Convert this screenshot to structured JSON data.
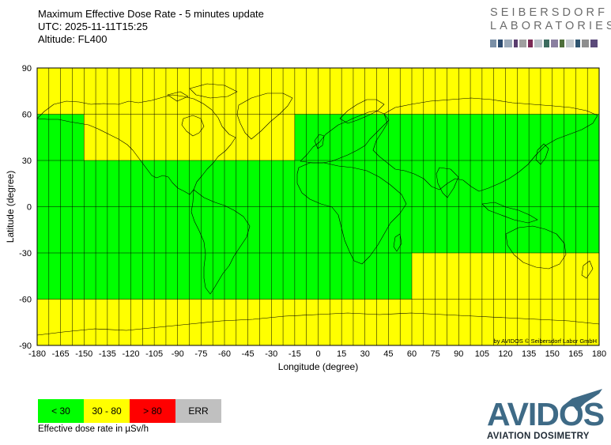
{
  "header": {
    "title": "Maximum Effective Dose Rate - 5 minutes update",
    "utc": "UTC: 2025-11-11T15:25",
    "altitude": "Altitude: FL400"
  },
  "logo_top": {
    "line1": "SEIBERSDORF",
    "line2": "LABORATORIES"
  },
  "colors": {
    "green": "#00ff00",
    "yellow": "#ffff00",
    "red": "#ff0000",
    "gray": "#c0c0c0",
    "grid": "#000000",
    "coast": "#000000"
  },
  "map": {
    "xlabel": "Longitude (degree)",
    "ylabel": "Latitude (degree)",
    "xlim": [
      -180,
      180
    ],
    "ylim": [
      -90,
      90
    ],
    "x_ticks": [
      -180,
      -165,
      -150,
      -135,
      -120,
      -105,
      -90,
      -75,
      -60,
      -45,
      -30,
      -15,
      0,
      15,
      30,
      45,
      60,
      75,
      90,
      105,
      120,
      135,
      150,
      165,
      180
    ],
    "y_ticks": [
      90,
      60,
      30,
      0,
      -30,
      -60,
      -90
    ],
    "lon_grid_step": 7.5,
    "lat_grid_step": 30,
    "credit": "by AVIDOS © Seibersdorf Labor GmbH",
    "dose_regions": [
      {
        "lon": [
          -180,
          180
        ],
        "lat": [
          60,
          90
        ],
        "category": "30 - 80"
      },
      {
        "lon": [
          -180,
          180
        ],
        "lat": [
          -90,
          -60
        ],
        "category": "30 - 80"
      },
      {
        "lon": [
          -150,
          -15
        ],
        "lat": [
          30,
          60
        ],
        "category": "30 - 80"
      },
      {
        "lon": [
          60,
          180
        ],
        "lat": [
          -60,
          -30
        ],
        "category": "30 - 80"
      },
      {
        "lon": [
          -180,
          -150
        ],
        "lat": [
          30,
          60
        ],
        "category": "< 30"
      },
      {
        "lon": [
          -15,
          180
        ],
        "lat": [
          30,
          60
        ],
        "category": "< 30"
      },
      {
        "lon": [
          -180,
          180
        ],
        "lat": [
          -30,
          30
        ],
        "category": "< 30"
      },
      {
        "lon": [
          -180,
          60
        ],
        "lat": [
          -60,
          -30
        ],
        "category": "< 30"
      }
    ]
  },
  "legend": {
    "items": [
      {
        "label": "< 30",
        "color": "#00ff00"
      },
      {
        "label": "30 - 80",
        "color": "#ffff00"
      },
      {
        "label": "> 80",
        "color": "#ff0000"
      },
      {
        "label": "ERR",
        "color": "#c0c0c0"
      }
    ],
    "caption": "Effective dose rate in µSv/h"
  },
  "logo_bottom": {
    "word": "AVIDOS",
    "subtitle": "AVIATION DOSIMETRY"
  }
}
